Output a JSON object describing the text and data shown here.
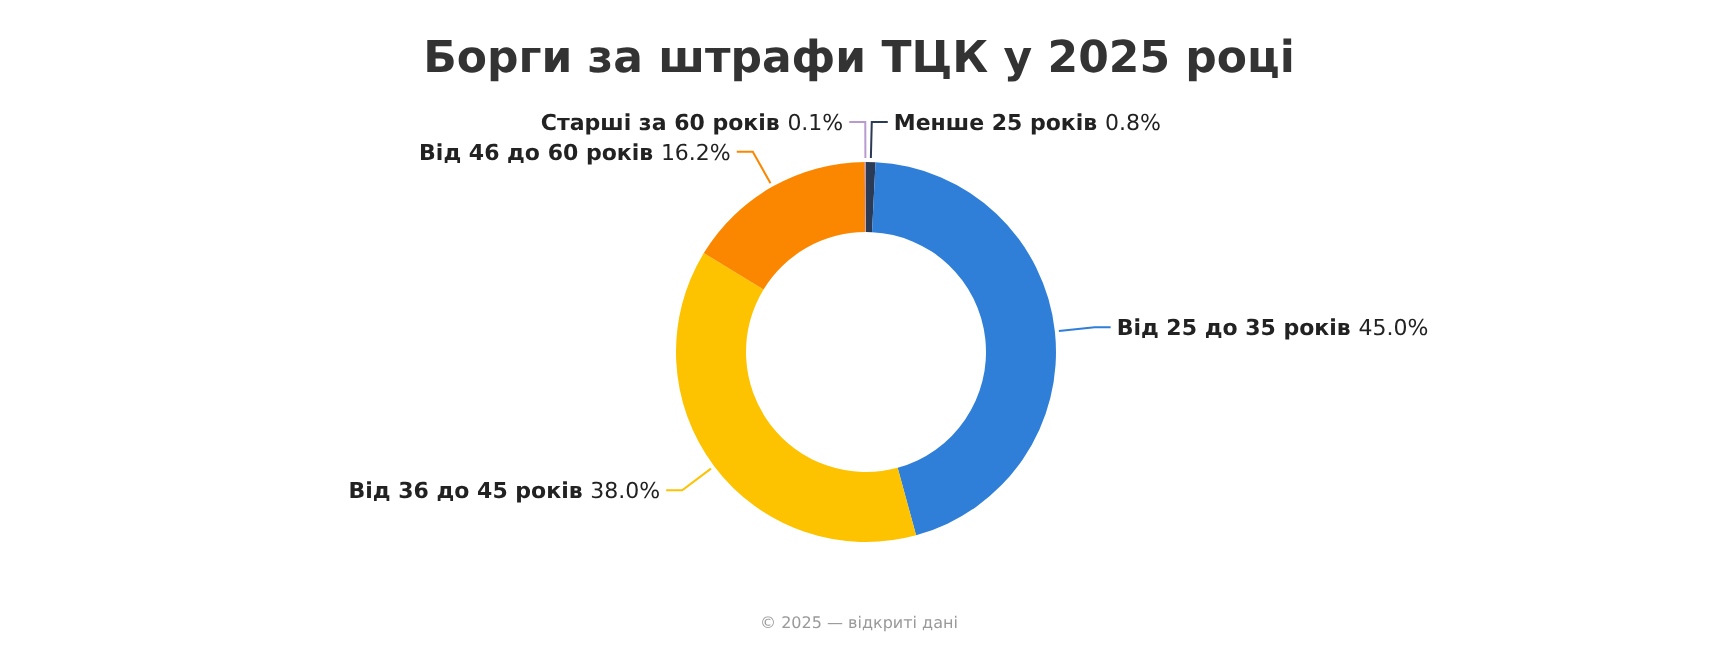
{
  "chart_data": {
    "type": "donut",
    "title": "Борги за штрафи ТЦК у 2025 році",
    "categories": [
      "Менше 25 років",
      "Від 25 до 35 років",
      "Від 36 до 45 років",
      "Від 46 до 60 років",
      "Старші за 60 років"
    ],
    "values": [
      0.8,
      45.0,
      38.0,
      16.2,
      0.1
    ],
    "value_labels": [
      "0.8%",
      "45.0%",
      "38.0%",
      "16.2%",
      "0.1%"
    ],
    "colors": [
      "#2b3a55",
      "#2f7fd8",
      "#fdc200",
      "#fb8700",
      "#b99ad0"
    ],
    "legend": false,
    "annotations": [
      "© 2025 — відкриті дані"
    ]
  }
}
